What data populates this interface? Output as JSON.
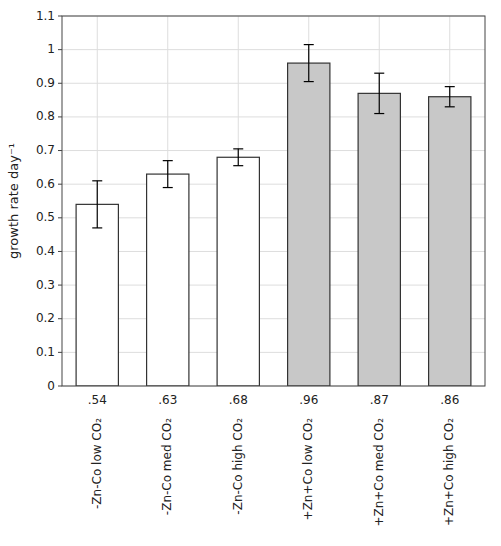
{
  "chart_data": {
    "type": "bar",
    "categories": [
      "-Zn-Co low CO₂",
      "-Zn-Co med CO₂",
      "-Zn-Co high CO₂",
      "+Zn+Co low CO₂",
      "+Zn+Co med CO₂",
      "+Zn+Co high CO₂"
    ],
    "values": [
      0.54,
      0.63,
      0.68,
      0.96,
      0.87,
      0.86
    ],
    "errors": [
      0.07,
      0.04,
      0.025,
      0.055,
      0.06,
      0.03
    ],
    "value_labels": [
      ".54",
      ".63",
      ".68",
      ".96",
      ".87",
      ".86"
    ],
    "data_labels": true,
    "colors": [
      "white",
      "white",
      "white",
      "#c8c8c8",
      "#c8c8c8",
      "#c8c8c8"
    ],
    "ylabel": "growth rate day⁻¹",
    "ylim": [
      0,
      1.1
    ],
    "yticks": [
      0,
      0.1,
      0.2,
      0.3,
      0.4,
      0.5,
      0.6,
      0.7,
      0.8,
      0.9,
      1,
      1.1
    ],
    "grid": true
  }
}
